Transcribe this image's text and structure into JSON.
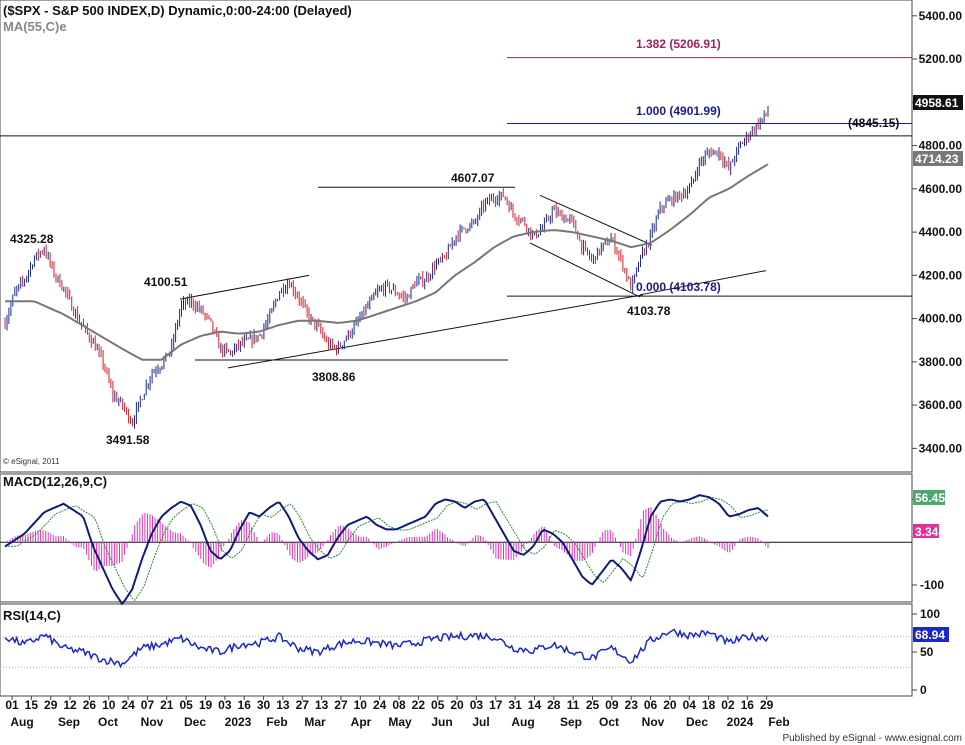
{
  "header": {
    "title": "($SPX - S&P 500 INDEX,D) Dynamic,0:00-24:00 (Delayed)",
    "ma_label": "MA(55,C)e"
  },
  "copyright": "© eSignal, 2011",
  "footer": "Published by eSignal - www.esignal.com",
  "colors": {
    "up": "#1a2a8c",
    "down": "#d0202a",
    "ma": "#777777",
    "macd": "#101a7a",
    "signal": "#2a8a3a",
    "hist": "#dd33bb",
    "rsi": "#1a28c8",
    "fib": "#992266",
    "accent_green": "#4aa86a",
    "accent_magenta": "#e0309a"
  },
  "x_axis": {
    "days": [
      "01",
      "15",
      "29",
      "12",
      "26",
      "10",
      "24",
      "07",
      "21",
      "05",
      "19",
      "03",
      "16",
      "30",
      "13",
      "27",
      "13",
      "27",
      "10",
      "24",
      "08",
      "22",
      "05",
      "20",
      "03",
      "17",
      "31",
      "14",
      "28",
      "11",
      "25",
      "09",
      "23",
      "06",
      "20",
      "04",
      "18",
      "02",
      "16",
      "29"
    ],
    "months": [
      "Aug",
      "Sep",
      "Oct",
      "Nov",
      "Dec",
      "2023",
      "Feb",
      "Mar",
      "Apr",
      "May",
      "Jun",
      "Jul",
      "Aug",
      "Sep",
      "Oct",
      "Nov",
      "Dec",
      "2024",
      "Feb"
    ]
  },
  "chart_data": [
    {
      "type": "candlestick",
      "title": "($SPX - S&P 500 INDEX,D) Dynamic,0:00-24:00 (Delayed)",
      "ylim": [
        3300,
        5450
      ],
      "y_ticks": [
        "5400.00",
        "5200.00",
        "5000.00",
        "4800.00",
        "4600.00",
        "4400.00",
        "4200.00",
        "4000.00",
        "3800.00",
        "3600.00",
        "3400.00"
      ],
      "anchors_weekly_close": [
        [
          0,
          3980
        ],
        [
          1,
          4120
        ],
        [
          2,
          4180
        ],
        [
          3,
          4280
        ],
        [
          4,
          4325
        ],
        [
          5,
          4210
        ],
        [
          6,
          4140
        ],
        [
          7,
          4040
        ],
        [
          8,
          3960
        ],
        [
          9,
          3890
        ],
        [
          10,
          3800
        ],
        [
          11,
          3650
        ],
        [
          12,
          3600
        ],
        [
          13,
          3520
        ],
        [
          14,
          3640
        ],
        [
          15,
          3750
        ],
        [
          16,
          3790
        ],
        [
          17,
          3860
        ],
        [
          18,
          4060
        ],
        [
          19,
          4080
        ],
        [
          20,
          4040
        ],
        [
          21,
          3980
        ],
        [
          22,
          3860
        ],
        [
          23,
          3840
        ],
        [
          24,
          3880
        ],
        [
          25,
          3900
        ],
        [
          26,
          3920
        ],
        [
          27,
          4000
        ],
        [
          28,
          4120
        ],
        [
          29,
          4170
        ],
        [
          30,
          4100
        ],
        [
          31,
          4010
        ],
        [
          32,
          3960
        ],
        [
          33,
          3880
        ],
        [
          34,
          3860
        ],
        [
          35,
          3920
        ],
        [
          36,
          3980
        ],
        [
          37,
          4050
        ],
        [
          38,
          4120
        ],
        [
          39,
          4150
        ],
        [
          40,
          4120
        ],
        [
          41,
          4090
        ],
        [
          42,
          4170
        ],
        [
          43,
          4180
        ],
        [
          44,
          4250
        ],
        [
          45,
          4280
        ],
        [
          46,
          4380
        ],
        [
          47,
          4420
        ],
        [
          48,
          4440
        ],
        [
          49,
          4530
        ],
        [
          50,
          4560
        ],
        [
          51,
          4570
        ],
        [
          52,
          4480
        ],
        [
          53,
          4450
        ],
        [
          54,
          4380
        ],
        [
          55,
          4420
        ],
        [
          56,
          4500
        ],
        [
          57,
          4470
        ],
        [
          58,
          4450
        ],
        [
          59,
          4330
        ],
        [
          60,
          4270
        ],
        [
          61,
          4330
        ],
        [
          62,
          4370
        ],
        [
          63,
          4270
        ],
        [
          64,
          4140
        ],
        [
          65,
          4280
        ],
        [
          66,
          4380
        ],
        [
          67,
          4510
        ],
        [
          68,
          4550
        ],
        [
          69,
          4570
        ],
        [
          70,
          4600
        ],
        [
          71,
          4720
        ],
        [
          72,
          4770
        ],
        [
          73,
          4770
        ],
        [
          74,
          4690
        ],
        [
          75,
          4790
        ],
        [
          76,
          4850
        ],
        [
          77,
          4900
        ],
        [
          78,
          4958
        ]
      ],
      "ma_weekly": [
        [
          0,
          4080
        ],
        [
          3,
          4080
        ],
        [
          6,
          4020
        ],
        [
          9,
          3940
        ],
        [
          12,
          3860
        ],
        [
          14,
          3810
        ],
        [
          16,
          3810
        ],
        [
          18,
          3880
        ],
        [
          20,
          3920
        ],
        [
          22,
          3940
        ],
        [
          24,
          3930
        ],
        [
          26,
          3940
        ],
        [
          28,
          3970
        ],
        [
          30,
          3990
        ],
        [
          32,
          3990
        ],
        [
          34,
          3980
        ],
        [
          36,
          3990
        ],
        [
          38,
          4020
        ],
        [
          40,
          4050
        ],
        [
          42,
          4080
        ],
        [
          44,
          4120
        ],
        [
          46,
          4200
        ],
        [
          48,
          4260
        ],
        [
          50,
          4330
        ],
        [
          52,
          4380
        ],
        [
          54,
          4400
        ],
        [
          56,
          4410
        ],
        [
          58,
          4400
        ],
        [
          60,
          4380
        ],
        [
          62,
          4360
        ],
        [
          64,
          4330
        ],
        [
          66,
          4350
        ],
        [
          68,
          4410
        ],
        [
          70,
          4480
        ],
        [
          72,
          4560
        ],
        [
          74,
          4600
        ],
        [
          76,
          4660
        ],
        [
          78,
          4714
        ]
      ],
      "annotations": [
        "4325.28",
        "4100.51",
        "3491.58",
        "3808.86",
        "4607.07",
        "4103.78",
        "0.000 (4103.78)",
        "1.000 (4901.99)",
        "1.382 (5206.91)",
        "(4845.15)"
      ],
      "price_tags": {
        "last": "4958.61",
        "ma": "4714.23"
      },
      "fib_levels": [
        {
          "label": "1.382 (5206.91)",
          "value": 5206.91
        },
        {
          "label": "1.000 (4901.99)",
          "value": 4901.99
        },
        {
          "label": "0.000 (4103.78)",
          "value": 4103.78
        }
      ],
      "horizontal_levels": [
        4845.15,
        4607.07,
        3808.86
      ]
    },
    {
      "type": "line",
      "title": "MACD(12,26,9,C)",
      "ylim": [
        -135,
        150
      ],
      "y_ticks": [
        "100",
        "-100"
      ],
      "last_values": {
        "macd": "56.45",
        "hist": "3.34"
      },
      "macd_weekly": [
        [
          0,
          -10
        ],
        [
          2,
          20
        ],
        [
          4,
          70
        ],
        [
          6,
          90
        ],
        [
          8,
          60
        ],
        [
          9,
          -10
        ],
        [
          11,
          -110
        ],
        [
          12,
          -145
        ],
        [
          13,
          -110
        ],
        [
          14,
          -40
        ],
        [
          15,
          20
        ],
        [
          16,
          60
        ],
        [
          17,
          80
        ],
        [
          18,
          95
        ],
        [
          19,
          85
        ],
        [
          20,
          40
        ],
        [
          21,
          -20
        ],
        [
          22,
          -40
        ],
        [
          23,
          -20
        ],
        [
          24,
          30
        ],
        [
          25,
          70
        ],
        [
          26,
          60
        ],
        [
          27,
          80
        ],
        [
          28,
          95
        ],
        [
          29,
          60
        ],
        [
          30,
          10
        ],
        [
          31,
          -20
        ],
        [
          32,
          -40
        ],
        [
          33,
          -30
        ],
        [
          34,
          10
        ],
        [
          35,
          40
        ],
        [
          36,
          50
        ],
        [
          37,
          60
        ],
        [
          38,
          40
        ],
        [
          39,
          30
        ],
        [
          40,
          30
        ],
        [
          41,
          40
        ],
        [
          42,
          50
        ],
        [
          43,
          60
        ],
        [
          44,
          90
        ],
        [
          45,
          100
        ],
        [
          46,
          95
        ],
        [
          47,
          80
        ],
        [
          48,
          95
        ],
        [
          49,
          100
        ],
        [
          50,
          60
        ],
        [
          51,
          20
        ],
        [
          52,
          -20
        ],
        [
          53,
          -30
        ],
        [
          54,
          -10
        ],
        [
          55,
          30
        ],
        [
          56,
          20
        ],
        [
          57,
          0
        ],
        [
          58,
          -40
        ],
        [
          59,
          -80
        ],
        [
          60,
          -100
        ],
        [
          61,
          -70
        ],
        [
          62,
          -40
        ],
        [
          63,
          -60
        ],
        [
          64,
          -90
        ],
        [
          65,
          -20
        ],
        [
          66,
          60
        ],
        [
          67,
          95
        ],
        [
          68,
          100
        ],
        [
          69,
          95
        ],
        [
          70,
          100
        ],
        [
          71,
          110
        ],
        [
          72,
          105
        ],
        [
          73,
          90
        ],
        [
          74,
          60
        ],
        [
          75,
          65
        ],
        [
          76,
          75
        ],
        [
          77,
          80
        ],
        [
          78,
          60
        ]
      ]
    },
    {
      "type": "line",
      "title": "RSI(14,C)",
      "ylim": [
        0,
        100
      ],
      "y_ticks": [
        "100",
        "50",
        "0"
      ],
      "last_value": "68.94",
      "rsi_weekly": [
        [
          0,
          70
        ],
        [
          2,
          60
        ],
        [
          4,
          72
        ],
        [
          6,
          55
        ],
        [
          8,
          50
        ],
        [
          10,
          40
        ],
        [
          12,
          35
        ],
        [
          14,
          55
        ],
        [
          16,
          60
        ],
        [
          18,
          68
        ],
        [
          20,
          55
        ],
        [
          22,
          50
        ],
        [
          24,
          60
        ],
        [
          26,
          62
        ],
        [
          28,
          70
        ],
        [
          30,
          55
        ],
        [
          32,
          50
        ],
        [
          34,
          60
        ],
        [
          36,
          65
        ],
        [
          38,
          62
        ],
        [
          40,
          58
        ],
        [
          42,
          62
        ],
        [
          44,
          68
        ],
        [
          46,
          70
        ],
        [
          48,
          72
        ],
        [
          50,
          70
        ],
        [
          52,
          55
        ],
        [
          54,
          52
        ],
        [
          56,
          60
        ],
        [
          58,
          50
        ],
        [
          60,
          42
        ],
        [
          62,
          55
        ],
        [
          64,
          38
        ],
        [
          66,
          65
        ],
        [
          68,
          78
        ],
        [
          70,
          72
        ],
        [
          72,
          75
        ],
        [
          74,
          62
        ],
        [
          76,
          70
        ],
        [
          78,
          69
        ]
      ]
    }
  ]
}
